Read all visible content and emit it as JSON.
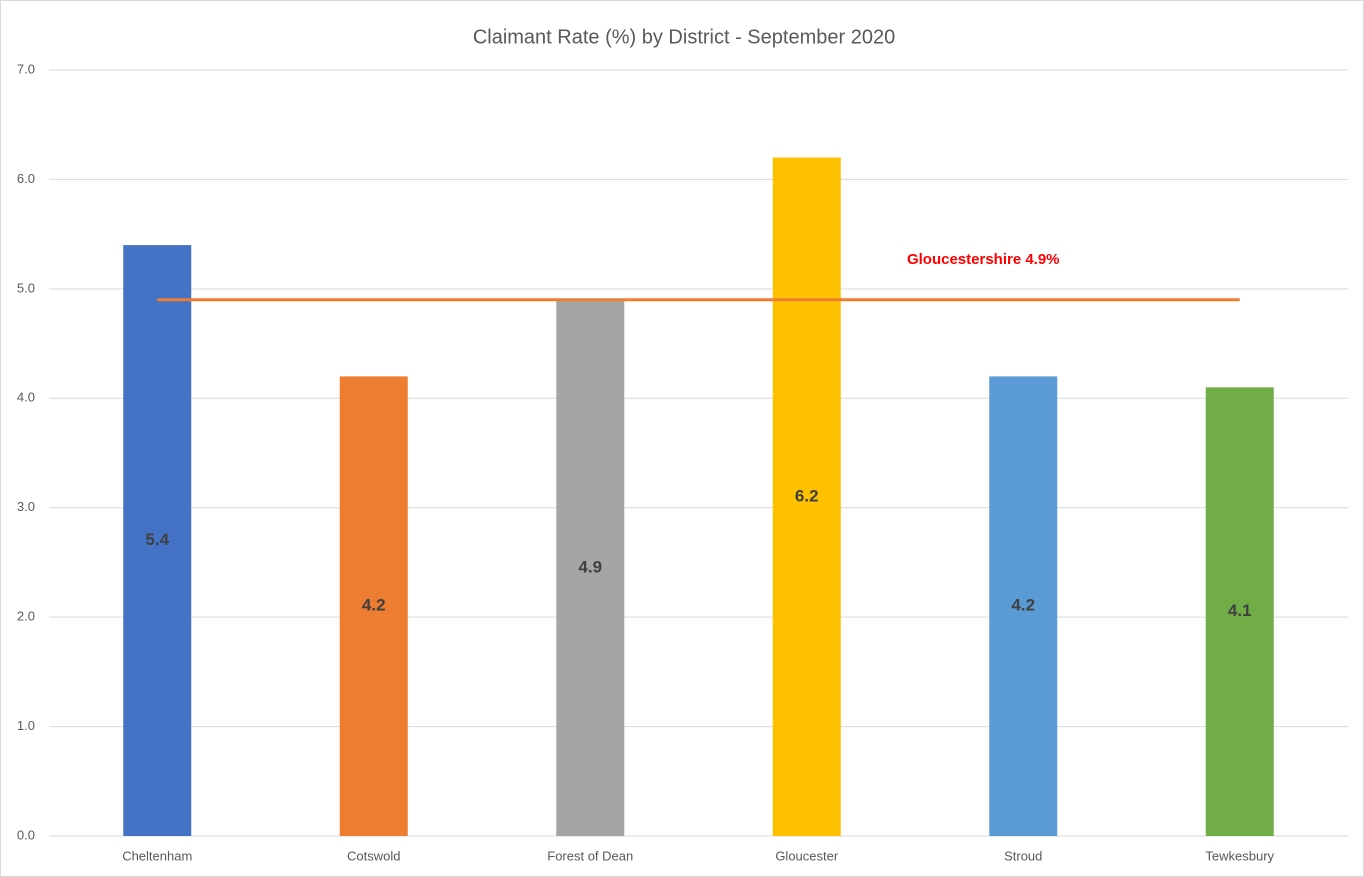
{
  "chart_data": {
    "type": "bar",
    "title": "Claimant Rate (%) by District - September 2020",
    "categories": [
      "Cheltenham",
      "Cotswold",
      "Forest of Dean",
      "Gloucester",
      "Stroud",
      "Tewkesbury"
    ],
    "values": [
      5.4,
      4.2,
      4.9,
      6.2,
      4.2,
      4.1
    ],
    "colors": [
      "#4472c4",
      "#ed7d31",
      "#a5a5a5",
      "#ffc000",
      "#5b9bd5",
      "#70ad47"
    ],
    "ylim": [
      0,
      7
    ],
    "yticks": [
      {
        "value": 0,
        "label": "0.0"
      },
      {
        "value": 1,
        "label": "1.0"
      },
      {
        "value": 2,
        "label": "2.0"
      },
      {
        "value": 3,
        "label": "3.0"
      },
      {
        "value": 4,
        "label": "4.0"
      },
      {
        "value": 5,
        "label": "5.0"
      },
      {
        "value": 6,
        "label": "6.0"
      },
      {
        "value": 7,
        "label": "7.0"
      }
    ],
    "grid": true,
    "reference_line": {
      "value": 4.9,
      "label": "Gloucestershire 4.9%",
      "color": "#ed7d31",
      "label_color": "#ff0000"
    }
  }
}
